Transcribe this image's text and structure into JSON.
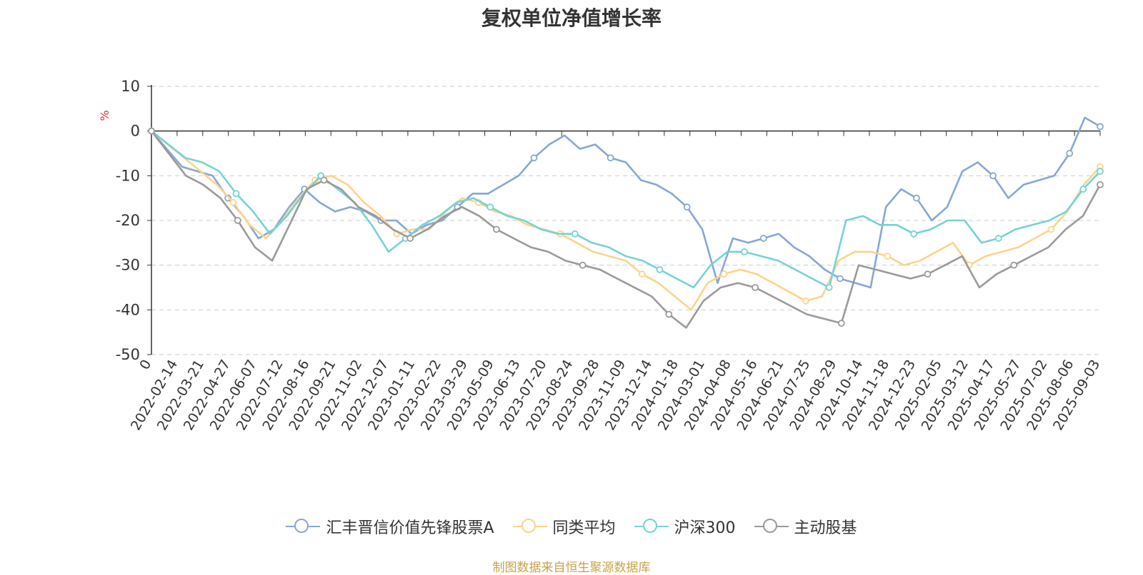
{
  "chart_data": {
    "type": "line",
    "title": "复权单位净值增长率",
    "ylabel": "%",
    "ylim": [
      -50,
      10
    ],
    "yticks": [
      "10",
      "0",
      "-10",
      "-20",
      "-30",
      "-40",
      "-50"
    ],
    "grid": true,
    "legend_position": "bottom-center",
    "source": "制图数据来自恒生聚源数据库",
    "x_tick_labels": [
      "0",
      "2022-02-14",
      "2022-03-21",
      "2022-04-27",
      "2022-06-07",
      "2022-07-12",
      "2022-08-16",
      "2022-09-21",
      "2022-11-02",
      "2022-12-07",
      "2023-01-11",
      "2023-02-22",
      "2023-03-29",
      "2023-05-09",
      "2023-06-13",
      "2023-07-20",
      "2023-08-24",
      "2023-09-28",
      "2023-11-09",
      "2023-12-14",
      "2024-01-18",
      "2024-03-01",
      "2024-04-08",
      "2024-05-16",
      "2024-06-21",
      "2024-07-25",
      "2024-08-29",
      "2024-10-14",
      "2024-11-18",
      "2024-12-23",
      "2025-02-05",
      "2025-03-12",
      "2025-04-17",
      "2025-05-27",
      "2025-07-02",
      "2025-08-06",
      "2025-09-03"
    ],
    "series": [
      {
        "name": "汇丰晋信价值先锋股票A",
        "color": "#86a7d6",
        "values": [
          0,
          -4,
          -8,
          -9,
          -10,
          -15,
          -19,
          -24,
          -22,
          -17,
          -13,
          -16,
          -18,
          -17,
          -18,
          -20,
          -20,
          -23,
          -21,
          -20,
          -17,
          -14,
          -14,
          -12,
          -10,
          -6,
          -3,
          -1,
          -4,
          -3,
          -6,
          -7,
          -11,
          -12,
          -14,
          -17,
          -22,
          -34,
          -24,
          -25,
          -24,
          -23,
          -26,
          -28,
          -31,
          -33,
          -34,
          -35,
          -17,
          -13,
          -15,
          -20,
          -17,
          -9,
          -7,
          -10,
          -15,
          -12,
          -11,
          -10,
          -5,
          3,
          1
        ]
      },
      {
        "name": "同类平均",
        "color": "#fcd38d",
        "values": [
          0,
          -3,
          -6,
          -9,
          -12,
          -16,
          -21,
          -24,
          -20,
          -15,
          -11,
          -10,
          -12,
          -16,
          -19,
          -23,
          -22,
          -22,
          -18,
          -15,
          -16,
          -18,
          -19,
          -21,
          -22,
          -23,
          -25,
          -27,
          -28,
          -29,
          -32,
          -34,
          -37,
          -40,
          -34,
          -32,
          -31,
          -32,
          -34,
          -36,
          -38,
          -37,
          -29,
          -27,
          -27,
          -28,
          -30,
          -29,
          -27,
          -25,
          -30,
          -28,
          -27,
          -26,
          -24,
          -22,
          -18,
          -12,
          -8
        ]
      },
      {
        "name": "沪深300",
        "color": "#76d2d4",
        "values": [
          0,
          -3,
          -6,
          -7,
          -9,
          -14,
          -18,
          -23,
          -19,
          -14,
          -10,
          -13,
          -16,
          -21,
          -27,
          -24,
          -21,
          -19,
          -16,
          -15,
          -17,
          -19,
          -20,
          -22,
          -23,
          -23,
          -25,
          -26,
          -28,
          -29,
          -31,
          -33,
          -35,
          -30,
          -27,
          -27,
          -28,
          -29,
          -31,
          -33,
          -35,
          -20,
          -19,
          -21,
          -21,
          -23,
          -22,
          -20,
          -20,
          -25,
          -24,
          -22,
          -21,
          -20,
          -18,
          -13,
          -9
        ]
      },
      {
        "name": "主动股基",
        "color": "#9a9a9a",
        "values": [
          0,
          -5,
          -10,
          -12,
          -15,
          -20,
          -26,
          -29,
          -21,
          -13,
          -11,
          -13,
          -17,
          -19,
          -22,
          -24,
          -22,
          -19,
          -17,
          -19,
          -22,
          -24,
          -26,
          -27,
          -29,
          -30,
          -31,
          -33,
          -35,
          -37,
          -41,
          -44,
          -38,
          -35,
          -34,
          -35,
          -37,
          -39,
          -41,
          -42,
          -43,
          -30,
          -31,
          -32,
          -33,
          -32,
          -30,
          -28,
          -35,
          -32,
          -30,
          -28,
          -26,
          -22,
          -19,
          -12
        ]
      }
    ]
  }
}
